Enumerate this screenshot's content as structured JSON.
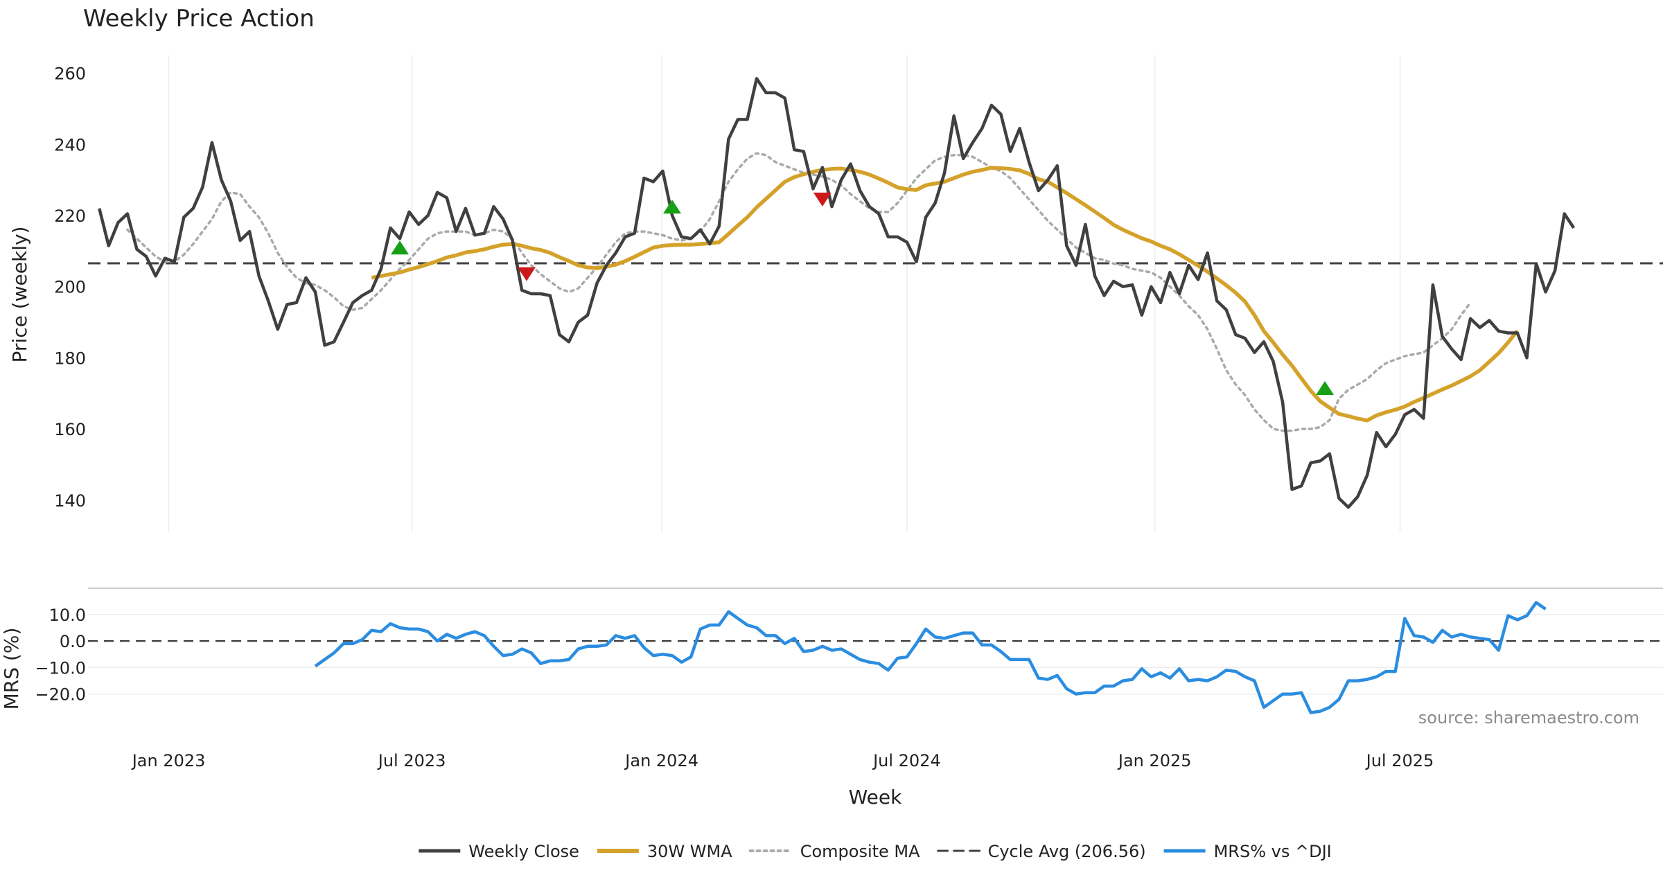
{
  "colors": {
    "close": "#404040",
    "wma": "#d4a22a",
    "composite": "#aaaaaa",
    "cycle": "#404040",
    "mrs": "#2b8de0",
    "buy": "#16a016",
    "sell": "#cc1a1a",
    "grid": "#ececec",
    "separator": "#cccccc"
  },
  "chart_data": [
    {
      "type": "line",
      "title": "Weekly Price Action",
      "ylabel": "Price (weekly)",
      "xlabel": "Week",
      "ylim": [
        131,
        265
      ],
      "xlim": [
        -1.2,
        166.5
      ],
      "x_ticks": [
        {
          "label": "Jan 2023",
          "week": 7.4
        },
        {
          "label": "Jul 2023",
          "week": 33.3
        },
        {
          "label": "Jan 2024",
          "week": 59.9
        },
        {
          "label": "Jul 2024",
          "week": 86.0
        },
        {
          "label": "Jan 2025",
          "week": 112.4
        },
        {
          "label": "Jul 2025",
          "week": 138.5
        }
      ],
      "y_ticks": [
        {
          "label": "140",
          "value": 140
        },
        {
          "label": "160",
          "value": 160
        },
        {
          "label": "180",
          "value": 180
        },
        {
          "label": "200",
          "value": 200
        },
        {
          "label": "220",
          "value": 220
        },
        {
          "label": "240",
          "value": 240
        },
        {
          "label": "260",
          "value": 260
        }
      ],
      "series": [
        {
          "name": "Weekly Close",
          "style": "solid",
          "start_week": 0,
          "values": [
            222,
            211.5,
            218,
            220.5,
            210.5,
            208.5,
            203,
            208,
            207,
            219.5,
            222,
            228,
            240.5,
            230,
            224,
            213,
            215.5,
            203,
            196,
            188,
            195,
            195.5,
            202.5,
            198.5,
            183.5,
            184.5,
            190,
            195.5,
            197.5,
            199,
            205,
            216.5,
            213.5,
            221,
            217.5,
            220,
            226.5,
            225,
            215.5,
            222,
            214.5,
            215,
            222.5,
            219,
            213,
            199,
            198,
            198,
            197.5,
            186.5,
            184.5,
            190,
            192,
            201,
            206,
            209.5,
            214,
            215,
            230.5,
            229.5,
            232.5,
            220,
            214,
            213.5,
            216,
            212,
            217,
            241.5,
            247,
            247,
            258.5,
            254.5,
            254.5,
            253,
            238.5,
            238,
            227.5,
            233.5,
            222.5,
            230,
            234.5,
            227,
            222.5,
            220.5,
            214,
            214,
            212.5,
            207,
            219.5,
            223.5,
            232,
            248,
            236,
            240.5,
            244.5,
            251,
            248.5,
            238,
            244.5,
            235,
            227,
            230,
            234,
            211.5,
            206,
            217.5,
            203,
            197.5,
            201.5,
            200,
            200.5,
            192,
            200,
            195.5,
            204,
            198,
            206,
            202,
            209.5,
            196,
            193.5,
            186.5,
            185.5,
            181.5,
            184.5,
            179,
            167.5,
            143,
            144,
            150.5,
            151,
            153,
            140.5,
            138,
            141,
            147,
            159,
            155,
            158.5,
            164,
            165.5,
            163,
            200.5,
            186,
            182.5,
            179.5,
            191,
            188.5,
            190.5,
            187.5,
            187,
            187,
            180,
            206.5,
            198.5,
            204.5,
            220.5,
            216.5
          ]
        },
        {
          "name": "30W WMA",
          "style": "solid",
          "start_week": 29,
          "values": [
            202.5,
            203,
            203.5,
            204,
            204.8,
            205.5,
            206.3,
            207.2,
            208.2,
            208.8,
            209.6,
            210,
            210.5,
            211.2,
            211.8,
            212,
            211.5,
            210.8,
            210.3,
            209.5,
            208.3,
            207.2,
            206,
            205.4,
            205.2,
            205.6,
            206.2,
            207.2,
            208.4,
            209.7,
            211,
            211.5,
            211.7,
            211.8,
            211.8,
            212,
            212.2,
            212.5,
            214.8,
            217.2,
            219.5,
            222.3,
            224.7,
            227.1,
            229.5,
            230.8,
            231.6,
            232.3,
            232.8,
            233.1,
            233.2,
            232.8,
            232.3,
            231.5,
            230.4,
            229.2,
            227.9,
            227.4,
            227.2,
            228.5,
            229,
            229.5,
            230.5,
            231.5,
            232.3,
            232.8,
            233.4,
            233.3,
            233.1,
            232.7,
            231.7,
            230.2,
            229.5,
            227.9,
            226.3,
            224.6,
            222.9,
            221.1,
            219.3,
            217.4,
            216,
            214.8,
            213.6,
            212.7,
            211.5,
            210.5,
            209.1,
            207.5,
            205.9,
            204.2,
            202.3,
            200.4,
            198.3,
            195.8,
            192,
            187.5,
            184.3,
            180.9,
            177.8,
            174.2,
            170.7,
            167.8,
            166,
            164.2,
            163.6,
            162.9,
            162.4,
            163.8,
            164.7,
            165.4,
            166.3,
            167.6,
            168.7,
            169.9,
            171.1,
            172.2,
            173.5,
            174.8,
            176.5,
            178.9,
            181.3,
            184.3,
            187.6
          ]
        },
        {
          "name": "Composite MA",
          "style": "dotted",
          "start_week": 3,
          "values": [
            216,
            213.5,
            211,
            208.5,
            207,
            207,
            209,
            212,
            215.5,
            219,
            224,
            226.5,
            226,
            222.5,
            219.5,
            215,
            209.5,
            205.5,
            202.5,
            201,
            200.5,
            199,
            197,
            194.5,
            193.5,
            194,
            196.5,
            199,
            202,
            205,
            207.5,
            210.5,
            213.5,
            215,
            215.5,
            215.5,
            215.5,
            214.5,
            215,
            216,
            215.5,
            213.5,
            209.5,
            206,
            203.5,
            201.5,
            199.5,
            198.5,
            199.5,
            202.5,
            205.5,
            209,
            212.5,
            215,
            215.5,
            215.5,
            215,
            214.5,
            213.5,
            213,
            213.5,
            215.5,
            219,
            224,
            229.5,
            233,
            236,
            237.5,
            237,
            235,
            234,
            233,
            232,
            231.5,
            231,
            230,
            228.5,
            226,
            224,
            222,
            221,
            221,
            223.5,
            227,
            230.5,
            233,
            235.5,
            236.5,
            237,
            237,
            236.5,
            235,
            233.5,
            232.5,
            230.5,
            227.5,
            224.5,
            221.5,
            218.5,
            216,
            213.5,
            211,
            209.5,
            208,
            207.5,
            206.5,
            206,
            205,
            204.5,
            204,
            202.5,
            200,
            197.5,
            194.5,
            192,
            188,
            182.5,
            176.5,
            172.5,
            169.5,
            165.5,
            162.5,
            160,
            159.5,
            159.5,
            160,
            160,
            160.5,
            162.5,
            168.5,
            171,
            172.5,
            174,
            176.5,
            178.5,
            179.5,
            180.5,
            181,
            181.5,
            183.5,
            185.5,
            188,
            192,
            195.5
          ]
        },
        {
          "name": "Cycle Avg (206.56)",
          "style": "dashed",
          "value": 206.56
        }
      ],
      "signals": [
        {
          "type": "buy",
          "week": 32.0,
          "value": 211
        },
        {
          "type": "sell",
          "week": 45.5,
          "value": 203.5
        },
        {
          "type": "buy",
          "week": 61.0,
          "value": 222.5
        },
        {
          "type": "sell",
          "week": 77.0,
          "value": 224.5
        },
        {
          "type": "buy",
          "week": 130.5,
          "value": 171.5
        }
      ]
    },
    {
      "type": "line",
      "ylabel": "MRS (%)",
      "ylim": [
        -30,
        17
      ],
      "y_ticks": [
        {
          "label": "10.0",
          "value": 10
        },
        {
          "label": "0.0",
          "value": 0
        },
        {
          "label": "−10.0",
          "value": -10
        },
        {
          "label": "−20.0",
          "value": -20
        }
      ],
      "zero_line": 0,
      "series": [
        {
          "name": "MRS% vs ^DJI",
          "style": "solid",
          "start_week": 23,
          "values": [
            -9.5,
            -7,
            -4.5,
            -1,
            -1,
            0.5,
            4,
            3.5,
            6.5,
            5,
            4.5,
            4.5,
            3.5,
            0,
            2.5,
            1,
            2.5,
            3.5,
            2,
            -2,
            -5.5,
            -5,
            -3,
            -4.5,
            -8.5,
            -7.5,
            -7.5,
            -7,
            -3,
            -2,
            -2,
            -1.5,
            2,
            1,
            2,
            -2.5,
            -5.5,
            -5,
            -5.5,
            -8,
            -6,
            4.5,
            6,
            6,
            11,
            8.5,
            6,
            5,
            2,
            2,
            -1,
            1,
            -4,
            -3.5,
            -2,
            -3.5,
            -3,
            -5,
            -7,
            -8,
            -8.5,
            -11,
            -6.5,
            -6,
            -1,
            4.5,
            1.5,
            1,
            2,
            3,
            3,
            -1.5,
            -1.5,
            -4,
            -7,
            -7,
            -7,
            -14,
            -14.5,
            -13,
            -18,
            -20,
            -19.5,
            -19.5,
            -17,
            -17,
            -15,
            -14.5,
            -10.5,
            -13.5,
            -12,
            -14,
            -10.5,
            -15,
            -14.5,
            -15,
            -13.5,
            -11,
            -11.5,
            -13.5,
            -15,
            -25,
            -22.5,
            -20,
            -20,
            -19.5,
            -27,
            -26.5,
            -25,
            -22,
            -15,
            -15,
            -14.5,
            -13.5,
            -11.5,
            -11.5,
            8.5,
            2,
            1.5,
            -0.5,
            4,
            1.5,
            2.5,
            1.5,
            1,
            0.5,
            -3.5,
            9.5,
            8,
            9.5,
            14.5,
            12
          ]
        }
      ],
      "annotation": "source: sharemaestro.com"
    }
  ],
  "legend": {
    "items": [
      {
        "label": "Weekly Close",
        "style": "solid-dark"
      },
      {
        "label": "30W WMA",
        "style": "solid-gold"
      },
      {
        "label": "Composite MA",
        "style": "dotted-gray"
      },
      {
        "label": "Cycle Avg (206.56)",
        "style": "dashed-dark"
      },
      {
        "label": "MRS% vs ^DJI",
        "style": "solid-blue"
      }
    ]
  }
}
